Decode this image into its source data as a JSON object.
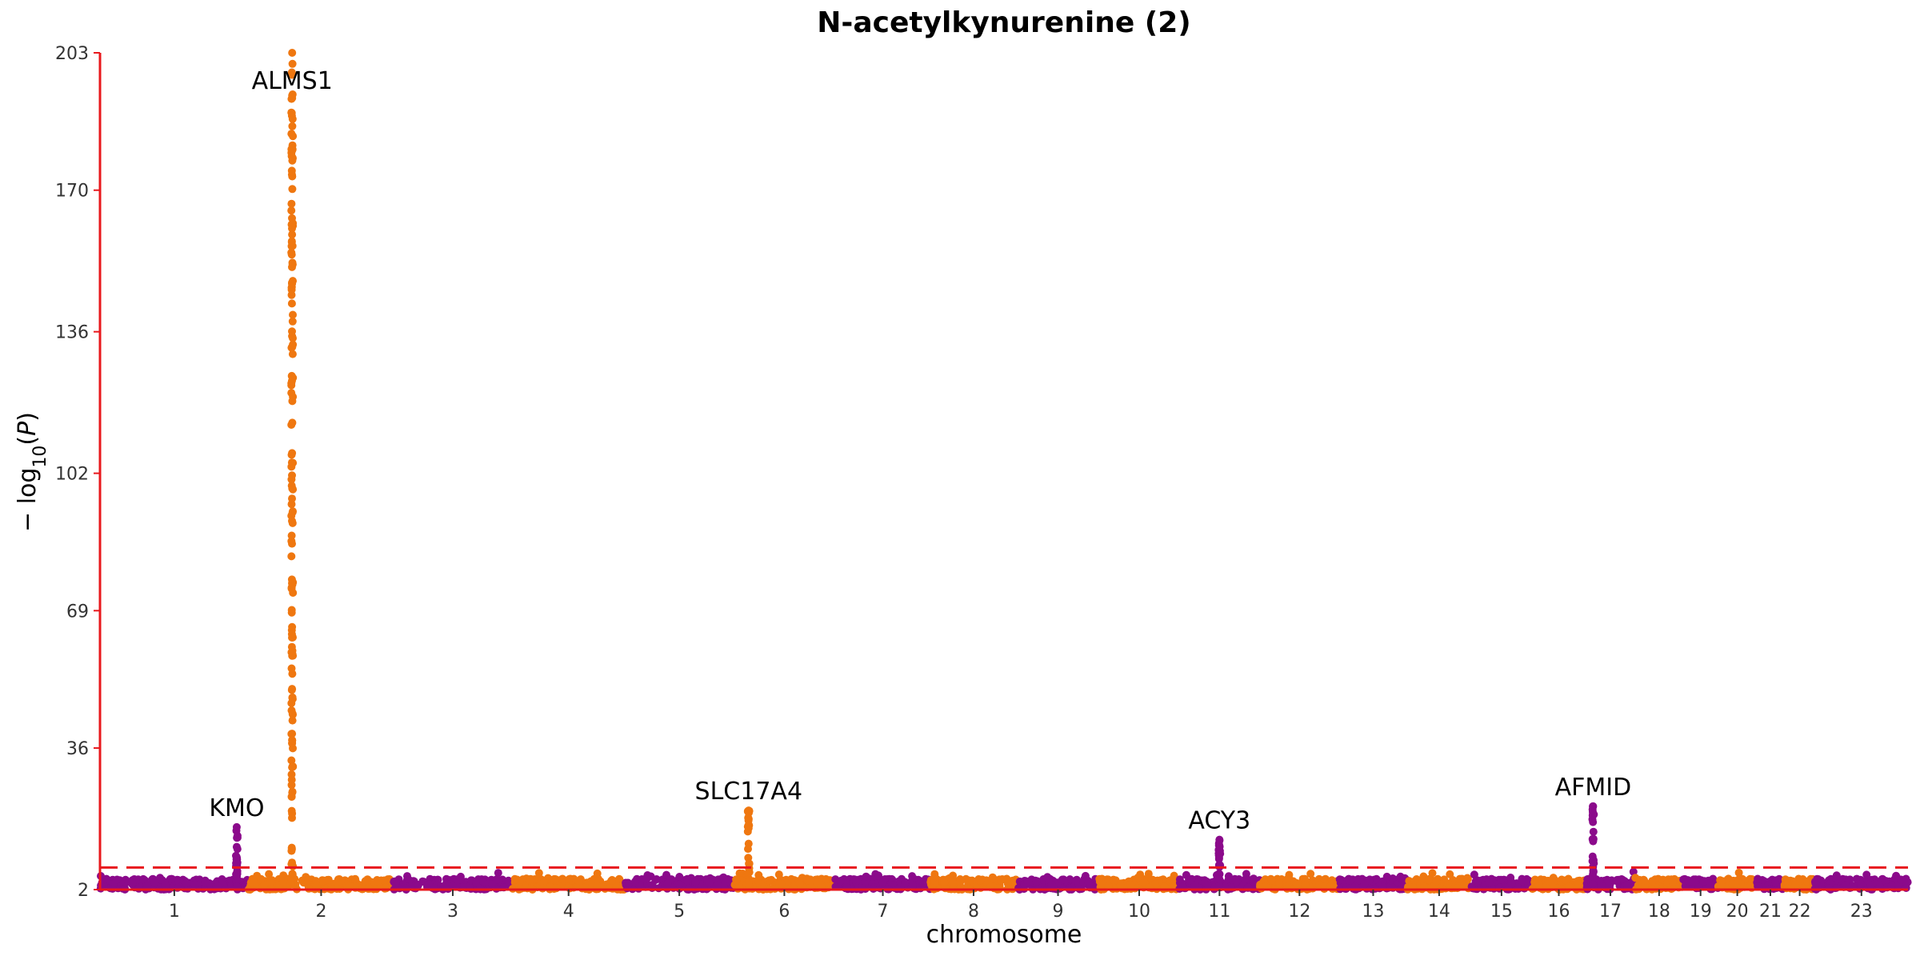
{
  "chart_data": {
    "type": "scatter",
    "subtype": "manhattan",
    "title": "N-acetylkynurenine (2)",
    "xlabel": "chromosome",
    "ylabel": "− log10(P)",
    "ylim": [
      2,
      203
    ],
    "yticks": [
      "2",
      "36",
      "69",
      "102",
      "136",
      "170",
      "203"
    ],
    "chromosomes": [
      "1",
      "2",
      "3",
      "4",
      "5",
      "6",
      "7",
      "8",
      "9",
      "10",
      "11",
      "12",
      "13",
      "14",
      "15",
      "16",
      "17",
      "18",
      "19",
      "20",
      "21",
      "22",
      "23"
    ],
    "colors": {
      "odd": "#8b0a8b",
      "even": "#ef7710",
      "threshold": "#e8181d",
      "axis": "#e8181d"
    },
    "significance_threshold": 7.3,
    "peaks": [
      {
        "gene": "KMO",
        "chromosome": "1",
        "max_y": 17
      },
      {
        "gene": "ALMS1",
        "chromosome": "2",
        "max_y": 203
      },
      {
        "gene": "SLC17A4",
        "chromosome": "6",
        "max_y": 21
      },
      {
        "gene": "ACY3",
        "chromosome": "11",
        "max_y": 14
      },
      {
        "gene": "AFMID",
        "chromosome": "17",
        "max_y": 22
      }
    ],
    "grid": false,
    "legend": "none"
  }
}
